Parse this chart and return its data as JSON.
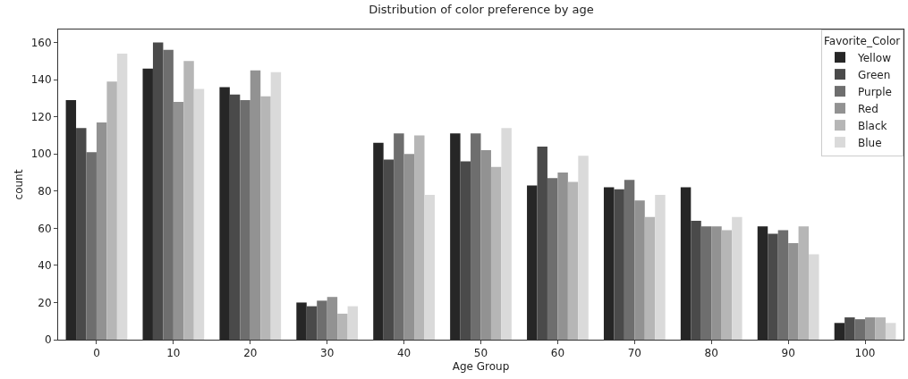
{
  "chart_data": {
    "type": "bar",
    "title": "Distribution of color preference by age",
    "xlabel": "Age Group",
    "ylabel": "count",
    "legend_title": "Favorite_Color",
    "categories": [
      "0",
      "10",
      "20",
      "30",
      "40",
      "50",
      "60",
      "70",
      "80",
      "90",
      "100"
    ],
    "series": [
      {
        "name": "Yellow",
        "color": "#262626",
        "values": [
          129,
          146,
          136,
          20,
          106,
          111,
          83,
          82,
          82,
          61,
          9
        ]
      },
      {
        "name": "Green",
        "color": "#4a4a4a",
        "values": [
          114,
          160,
          132,
          18,
          97,
          96,
          104,
          81,
          64,
          57,
          12
        ]
      },
      {
        "name": "Purple",
        "color": "#6e6e6e",
        "values": [
          101,
          156,
          129,
          21,
          111,
          111,
          87,
          86,
          61,
          59,
          11
        ]
      },
      {
        "name": "Red",
        "color": "#929292",
        "values": [
          117,
          128,
          145,
          23,
          100,
          102,
          90,
          75,
          61,
          52,
          12
        ]
      },
      {
        "name": "Black",
        "color": "#b6b6b6",
        "values": [
          139,
          150,
          131,
          14,
          110,
          93,
          85,
          66,
          59,
          61,
          12
        ]
      },
      {
        "name": "Blue",
        "color": "#dadada",
        "values": [
          154,
          135,
          144,
          18,
          78,
          114,
          99,
          78,
          66,
          46,
          9
        ]
      }
    ],
    "ylim": [
      0,
      167
    ],
    "yticks": [
      0,
      20,
      40,
      60,
      80,
      100,
      120,
      140,
      160
    ],
    "grid": false,
    "legend": "top right"
  }
}
